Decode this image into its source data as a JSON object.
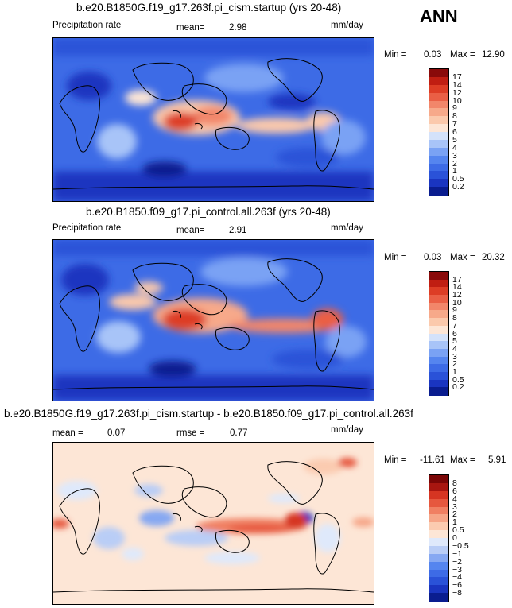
{
  "season": "ANN",
  "panels": [
    {
      "title": "b.e20.B1850G.f19_g17.263f.pi_cism.startup (yrs 20-48)",
      "left_label": "Precipitation rate",
      "stat_label": "mean=",
      "stat_value": "2.98",
      "units": "mm/day",
      "min_label": "Min =",
      "min_value": "0.03",
      "max_label": "Max =",
      "max_value": "12.90",
      "colorbar_labels": [
        "17",
        "14",
        "12",
        "10",
        "9",
        "8",
        "7",
        "6",
        "5",
        "4",
        "3",
        "2",
        "1",
        "0.5",
        "0.2"
      ]
    },
    {
      "title": "b.e20.B1850.f09_g17.pi_control.all.263f (yrs 20-48)",
      "left_label": "Precipitation rate",
      "stat_label": "mean=",
      "stat_value": "2.91",
      "units": "mm/day",
      "min_label": "Min =",
      "min_value": "0.03",
      "max_label": "Max =",
      "max_value": "20.32",
      "colorbar_labels": [
        "17",
        "14",
        "12",
        "10",
        "9",
        "8",
        "7",
        "6",
        "5",
        "4",
        "3",
        "2",
        "1",
        "0.5",
        "0.2"
      ]
    },
    {
      "title": "b.e20.B1850G.f19_g17.263f.pi_cism.startup - b.e20.B1850.f09_g17.pi_control.all.263f",
      "stat_label": "mean =",
      "stat_value": "0.07",
      "rmse_label": "rmse =",
      "rmse_value": "0.77",
      "units": "mm/day",
      "min_label": "Min =",
      "min_value": "-11.61",
      "max_label": "Max =",
      "max_value": "5.91",
      "colorbar_labels": [
        "8",
        "6",
        "4",
        "3",
        "2",
        "1",
        "0.5",
        "0",
        "−0.5",
        "−1",
        "−2",
        "−3",
        "−4",
        "−6",
        "−8"
      ]
    }
  ],
  "chart_data": [
    {
      "type": "heatmap",
      "title": "b.e20.B1850G.f19_g17.263f.pi_cism.startup (yrs 20-48)",
      "variable": "Precipitation rate",
      "units": "mm/day",
      "mean": 2.98,
      "min": 0.03,
      "max": 12.9,
      "levels": [
        0.2,
        0.5,
        1,
        2,
        3,
        4,
        5,
        6,
        7,
        8,
        9,
        10,
        12,
        14,
        17
      ],
      "colors": [
        "#0a1d8f",
        "#1a35c0",
        "#2a52d8",
        "#3d6be6",
        "#5585ef",
        "#7aa2f4",
        "#a8c4f8",
        "#d4e2fa",
        "#fde6d6",
        "#fbc9ac",
        "#f7a98a",
        "#f2866a",
        "#ea5f45",
        "#dd3d25",
        "#c01e12",
        "#8a0a0a"
      ]
    },
    {
      "type": "heatmap",
      "title": "b.e20.B1850.f09_g17.pi_control.all.263f (yrs 20-48)",
      "variable": "Precipitation rate",
      "units": "mm/day",
      "mean": 2.91,
      "min": 0.03,
      "max": 20.32,
      "levels": [
        0.2,
        0.5,
        1,
        2,
        3,
        4,
        5,
        6,
        7,
        8,
        9,
        10,
        12,
        14,
        17
      ],
      "colors": [
        "#0a1d8f",
        "#1a35c0",
        "#2a52d8",
        "#3d6be6",
        "#5585ef",
        "#7aa2f4",
        "#a8c4f8",
        "#d4e2fa",
        "#fde6d6",
        "#fbc9ac",
        "#f7a98a",
        "#f2866a",
        "#ea5f45",
        "#dd3d25",
        "#c01e12",
        "#8a0a0a"
      ]
    },
    {
      "type": "heatmap",
      "title": "b.e20.B1850G.f19_g17.263f.pi_cism.startup - b.e20.B1850.f09_g17.pi_control.all.263f",
      "units": "mm/day",
      "mean": 0.07,
      "rmse": 0.77,
      "min": -11.61,
      "max": 5.91,
      "levels": [
        -8,
        -6,
        -4,
        -3,
        -2,
        -1,
        -0.5,
        0,
        0.5,
        1,
        2,
        3,
        4,
        6,
        8
      ],
      "colors": [
        "#0a1d8f",
        "#1a35c0",
        "#2a52d8",
        "#3d6be6",
        "#5585ef",
        "#86a8f2",
        "#b9cdf6",
        "#dfe9fb",
        "#fde6d6",
        "#fbcbb0",
        "#f6a587",
        "#f07f62",
        "#e6573e",
        "#d63522",
        "#a81610",
        "#7a0606"
      ]
    }
  ]
}
